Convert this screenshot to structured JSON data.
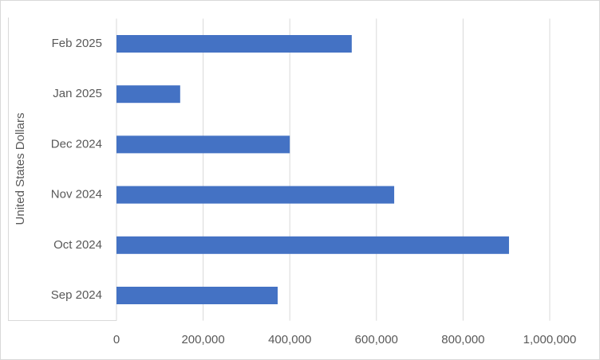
{
  "chart_data": {
    "type": "bar",
    "orientation": "horizontal",
    "y_axis_label": "United States Dollars",
    "categories": [
      "Sep 2024",
      "Oct 2024",
      "Nov 2024",
      "Dec 2024",
      "Jan 2025",
      "Feb 2025"
    ],
    "values": [
      372000,
      906000,
      641000,
      400000,
      147000,
      543000
    ],
    "color": "#4472c4",
    "xlim": [
      0,
      1000000
    ],
    "xticks": [
      0,
      {
        "value": 200000,
        "label": "200,000"
      },
      {
        "value": 400000,
        "label": "400,000"
      },
      {
        "value": 600000,
        "label": "600,000"
      },
      {
        "value": 800000,
        "label": "800,000"
      },
      {
        "value": 1000000,
        "label": "1,000,000"
      }
    ],
    "grid": true
  }
}
